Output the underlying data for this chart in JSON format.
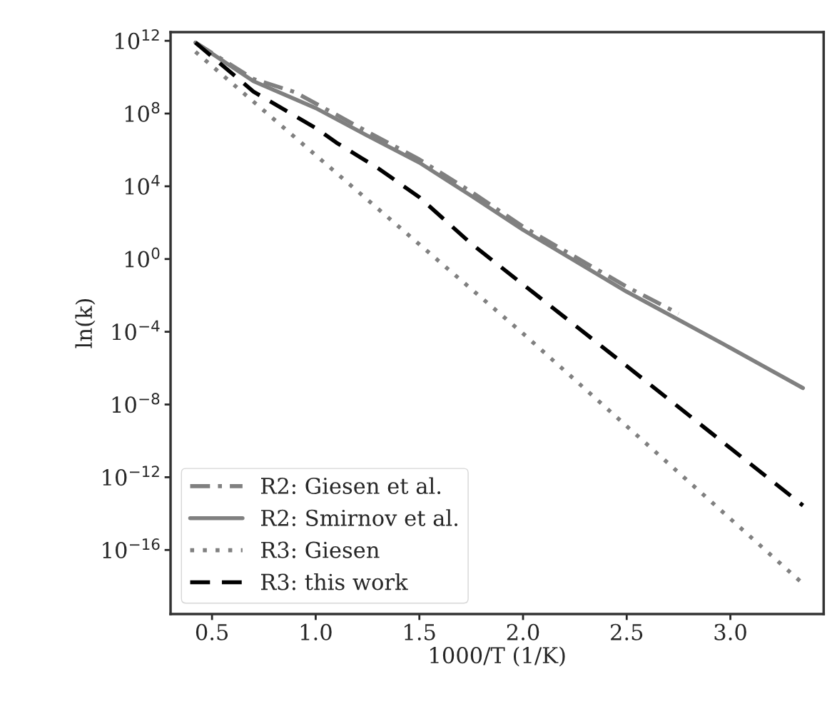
{
  "chart_data": {
    "type": "line",
    "xlabel": "1000/T (1/K)",
    "ylabel": "ln(k)",
    "log": "y",
    "xlim": [
      0.3,
      3.45
    ],
    "ylim": [
      3e-20,
      3000000000000.0
    ],
    "xticks": [
      0.5,
      {
        "value": 1,
        "label": "1.0"
      },
      1.5,
      {
        "value": 2,
        "label": "2.0"
      },
      2.5,
      {
        "value": 3,
        "label": "3.0"
      }
    ],
    "yticks": [
      {
        "value": 1000000000000.0,
        "label": "10$^{12}$"
      },
      {
        "value": 100000000.0,
        "label": "10$^{8}$"
      },
      {
        "value": 10000.0,
        "label": "10$^{4}$"
      },
      {
        "value": 1,
        "label": "10$^{0}$"
      },
      {
        "value": 0.0001,
        "label": "10$^{−4}$"
      },
      {
        "value": 1e-08,
        "label": "10$^{−8}$"
      },
      {
        "value": 1e-12,
        "label": "10$^{−12}$"
      },
      {
        "value": 1e-16,
        "label": "10$^{−16}$"
      }
    ],
    "grid": false,
    "legend": "bottom left",
    "series": [
      {
        "name": "R2: Giesen et al.",
        "color": "#808080",
        "line_style": "dashdot",
        "x": [
          0.42,
          0.7,
          0.9,
          1.25,
          1.5,
          1.75,
          2.0,
          2.5,
          2.75
        ],
        "values": [
          800000000000.0,
          8000000000.0,
          1500000000.0,
          10000000.0,
          300000.0,
          5000.0,
          60.0,
          0.03,
          0.001
        ]
      },
      {
        "name": "R2: Smirnov et al.",
        "color": "#808080",
        "line_style": "solid",
        "x": [
          0.42,
          0.7,
          1.0,
          1.25,
          1.5,
          1.75,
          2.0,
          2.5,
          3.0,
          3.35
        ],
        "values": [
          800000000000.0,
          6000000000.0,
          200000000.0,
          6000000.0,
          200000.0,
          3000.0,
          40.0,
          0.016,
          1.3e-05,
          8e-08
        ]
      },
      {
        "name": "R3: Giesen",
        "color": "#808080",
        "line_style": "dotted",
        "x": [
          0.42,
          2.0,
          3.35
        ],
        "values": [
          250000000000.0,
          8e-05,
          1.4e-18
        ]
      },
      {
        "name": "R3: this work",
        "color": "#000000",
        "line_style": "dashed",
        "x": [
          0.42,
          0.7,
          1.0,
          1.1,
          1.3,
          1.5,
          1.75,
          2.0,
          2.5,
          3.0,
          3.35
        ],
        "values": [
          800000000000.0,
          1600000000.0,
          16000000.0,
          2500000.0,
          100000.0,
          2500.0,
          7,
          0.04,
          1.3e-06,
          4e-11,
          2.8e-14
        ]
      }
    ]
  }
}
